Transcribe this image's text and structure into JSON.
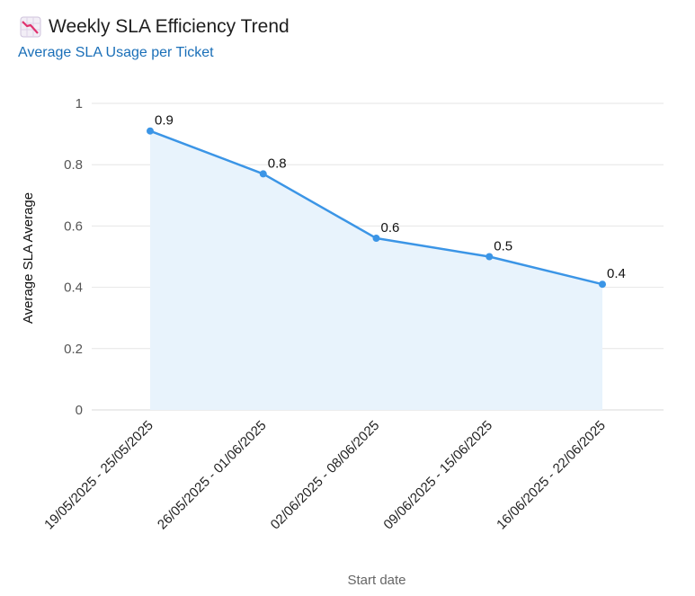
{
  "header": {
    "icon": "chart-decreasing-icon",
    "title": "Weekly SLA Efficiency Trend",
    "subtitle": "Average SLA Usage per Ticket"
  },
  "colors": {
    "line": "#3b95e6",
    "area": "#e8f3fc",
    "grid": "#e6e6e6",
    "subtitle": "#1a6fb8"
  },
  "chart_data": {
    "type": "area",
    "categories": [
      "19/05/2025 - 25/05/2025",
      "26/05/2025 - 01/06/2025",
      "02/06/2025 - 08/06/2025",
      "09/06/2025 - 15/06/2025",
      "16/06/2025 - 22/06/2025"
    ],
    "values": [
      0.91,
      0.77,
      0.56,
      0.5,
      0.41
    ],
    "data_labels": [
      "0.9",
      "0.8",
      "0.6",
      "0.5",
      "0.4"
    ],
    "title": "Weekly SLA Efficiency Trend",
    "subtitle": "Average SLA Usage per Ticket",
    "xlabel": "Start date",
    "ylabel": "Average SLA Average",
    "ylim": [
      0,
      1
    ],
    "yticks": [
      0,
      0.2,
      0.4,
      0.6,
      0.8,
      1
    ],
    "ytick_labels": [
      "0",
      "0.2",
      "0.4",
      "0.6",
      "0.8",
      "1"
    ],
    "grid": true,
    "legend": "none"
  }
}
